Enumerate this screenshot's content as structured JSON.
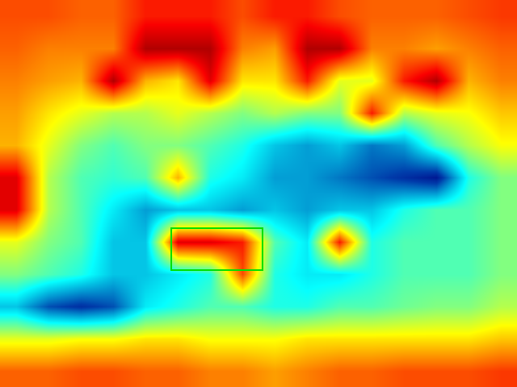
{
  "chart_data": {
    "type": "heatmap",
    "color": "Jet",
    "tick_labels": false,
    "grid": false,
    "xlim": [
      0,
      640
    ],
    "ylim": [
      480,
      0
    ],
    "zlim": [
      0,
      1
    ],
    "x": [
      20,
      60,
      100,
      140,
      180,
      220,
      260,
      300,
      340,
      380,
      420,
      460,
      500,
      540,
      580,
      620
    ],
    "y": [
      20,
      60,
      100,
      140,
      180,
      220,
      260,
      300,
      340,
      380,
      420,
      460
    ],
    "z": [
      [
        0.8,
        0.8,
        0.78,
        0.78,
        0.85,
        0.85,
        0.85,
        0.8,
        0.85,
        0.85,
        0.8,
        0.78,
        0.78,
        0.78,
        0.8,
        0.82
      ],
      [
        0.78,
        0.75,
        0.75,
        0.75,
        0.95,
        0.95,
        0.95,
        0.75,
        0.72,
        0.95,
        0.95,
        0.75,
        0.75,
        0.72,
        0.75,
        0.78
      ],
      [
        0.75,
        0.72,
        0.7,
        0.95,
        0.7,
        0.65,
        0.9,
        0.65,
        0.65,
        0.85,
        0.6,
        0.6,
        0.85,
        0.95,
        0.7,
        0.75
      ],
      [
        0.72,
        0.65,
        0.6,
        0.55,
        0.55,
        0.6,
        0.55,
        0.5,
        0.55,
        0.5,
        0.5,
        0.85,
        0.55,
        0.6,
        0.62,
        0.68
      ],
      [
        0.7,
        0.6,
        0.5,
        0.45,
        0.5,
        0.5,
        0.45,
        0.4,
        0.3,
        0.25,
        0.3,
        0.2,
        0.25,
        0.45,
        0.55,
        0.62
      ],
      [
        0.9,
        0.55,
        0.45,
        0.42,
        0.45,
        0.7,
        0.4,
        0.35,
        0.25,
        0.25,
        0.2,
        0.15,
        0.1,
        0.05,
        0.4,
        0.5
      ],
      [
        0.9,
        0.55,
        0.45,
        0.35,
        0.25,
        0.3,
        0.3,
        0.25,
        0.3,
        0.25,
        0.3,
        0.3,
        0.4,
        0.45,
        0.45,
        0.5
      ],
      [
        0.6,
        0.5,
        0.45,
        0.3,
        0.3,
        0.9,
        0.9,
        0.85,
        0.45,
        0.35,
        0.85,
        0.4,
        0.45,
        0.45,
        0.45,
        0.5
      ],
      [
        0.5,
        0.45,
        0.4,
        0.3,
        0.3,
        0.35,
        0.4,
        0.8,
        0.4,
        0.35,
        0.35,
        0.4,
        0.45,
        0.45,
        0.45,
        0.5
      ],
      [
        0.3,
        0.15,
        0.1,
        0.15,
        0.35,
        0.4,
        0.45,
        0.45,
        0.4,
        0.4,
        0.45,
        0.45,
        0.48,
        0.5,
        0.5,
        0.55
      ],
      [
        0.6,
        0.6,
        0.62,
        0.62,
        0.65,
        0.65,
        0.62,
        0.62,
        0.62,
        0.65,
        0.65,
        0.65,
        0.65,
        0.65,
        0.65,
        0.68
      ],
      [
        0.78,
        0.78,
        0.8,
        0.8,
        0.78,
        0.78,
        0.75,
        0.75,
        0.72,
        0.75,
        0.78,
        0.78,
        0.8,
        0.8,
        0.8,
        0.82
      ]
    ],
    "box": {
      "x": [
        212,
        325
      ],
      "y": [
        283,
        335
      ],
      "color": "#00e000"
    }
  }
}
